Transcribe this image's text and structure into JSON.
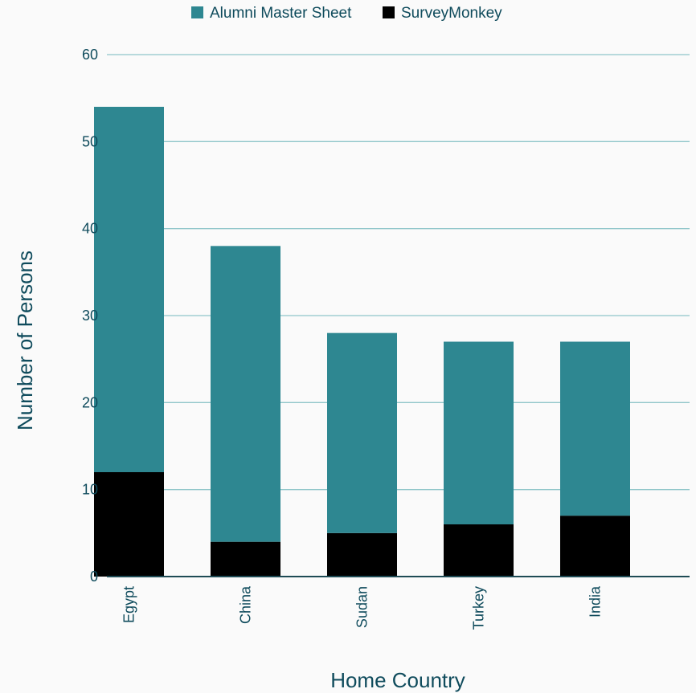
{
  "chart_data": {
    "type": "bar",
    "stacked": true,
    "categories": [
      "Egypt",
      "China",
      "Sudan",
      "Turkey",
      "India"
    ],
    "series": [
      {
        "name": "SurveyMonkey",
        "color": "#000000",
        "values": [
          12,
          4,
          5,
          6,
          7
        ]
      },
      {
        "name": "Alumni Master Sheet",
        "color": "#2e8791",
        "values": [
          42,
          34,
          23,
          21,
          20
        ]
      }
    ],
    "totals": [
      54,
      38,
      28,
      27,
      27
    ],
    "xlabel": "Home Country",
    "ylabel": "Number of Persons",
    "ylim": [
      0,
      60
    ],
    "yticks": [
      "0",
      "10",
      "20",
      "30",
      "40",
      "50",
      "60"
    ],
    "grid": true,
    "legend_position": "top",
    "legend": [
      {
        "name": "Alumni Master Sheet",
        "color": "#2e8791"
      },
      {
        "name": "SurveyMonkey",
        "color": "#000000"
      }
    ],
    "colors": {
      "gridline": "#8fc5c9",
      "axis": "#1e4b55",
      "text": "#0f4b5c"
    }
  }
}
